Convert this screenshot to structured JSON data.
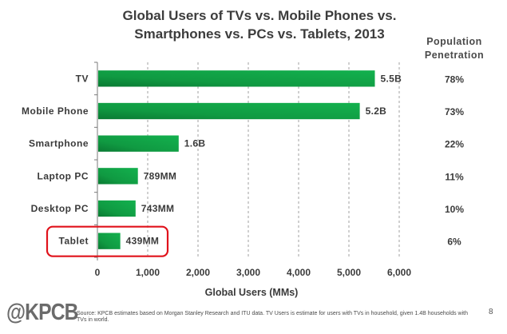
{
  "chart_data": {
    "type": "bar",
    "orientation": "horizontal",
    "title": "Global Users of TVs vs. Mobile Phones vs. Smartphones vs. PCs vs. Tablets, 2013",
    "title_lines": [
      "Global Users of TVs vs. Mobile Phones vs.",
      "Smartphones vs. PCs vs. Tablets, 2013"
    ],
    "xlabel": "Global Users (MMs)",
    "ylabel": "",
    "xlim": [
      0,
      6000
    ],
    "xticks": [
      0,
      1000,
      2000,
      3000,
      4000,
      5000,
      6000
    ],
    "xtick_labels": [
      "0",
      "1,000",
      "2,000",
      "3,000",
      "4,000",
      "5,000",
      "6,000"
    ],
    "grid": "vertical-dashed",
    "categories": [
      "TV",
      "Mobile Phone",
      "Smartphone",
      "Laptop PC",
      "Desktop PC",
      "Tablet"
    ],
    "values": [
      5500,
      5200,
      1600,
      789,
      743,
      439
    ],
    "data_labels": [
      "5.5B",
      "5.2B",
      "1.6B",
      "789MM",
      "743MM",
      "439MM"
    ],
    "population_penetration_header": [
      "Population",
      "Penetration"
    ],
    "population_penetration": [
      "78%",
      "73%",
      "22%",
      "11%",
      "10%",
      "6%"
    ],
    "highlighted_category": "Tablet",
    "bar_color": "#13a94a",
    "bar_color_dark": "#0a7a33",
    "highlight_color": "#e0121b"
  },
  "footer": {
    "logo": "@KPCB",
    "source": "Source: KPCB estimates based on Morgan Stanley Research and ITU data. TV Users is estimate for users with TVs in household, given 1.4B households with TVs in world.",
    "page_number": "8"
  }
}
